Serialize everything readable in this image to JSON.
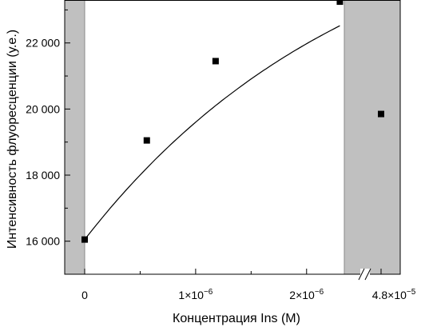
{
  "chart_data": {
    "type": "scatter",
    "ylabel": "Интенсивность флуоресценции (у.е.)",
    "xlabel": "Концентрация Ins (M)",
    "ylim": [
      15000,
      23300
    ],
    "xlim": [
      -1.8e-07,
      2.34e-06
    ],
    "x_axis_break": true,
    "shaded_regions": [
      "left of 0",
      "right of x-axis break"
    ],
    "y_ticks": [
      16000,
      18000,
      20000,
      22000
    ],
    "y_tick_labels": [
      "16 000",
      "18 000",
      "20 000",
      "22 000"
    ],
    "x_ticks": [
      {
        "label": "0",
        "base": "0",
        "exp": ""
      },
      {
        "label": "1×10⁻⁶",
        "base": "1×10",
        "exp": "−6"
      },
      {
        "label": "2×10⁻⁶",
        "base": "2×10",
        "exp": "−6"
      },
      {
        "label": "4.8×10⁻⁵",
        "base": "4.8×10",
        "exp": "−5"
      }
    ],
    "series": [
      {
        "points": [
          {
            "x": 0,
            "y": 16050
          },
          {
            "x": 5.6e-07,
            "y": 19050
          },
          {
            "x": 1.18e-06,
            "y": 21450
          },
          {
            "x": 2.3e-06,
            "y": 23250
          },
          {
            "x": 4.8e-05,
            "y": 19850
          }
        ]
      }
    ],
    "fit_curve": true,
    "colors": {
      "shade": "#c0c0c0",
      "marker": "#000000",
      "curve": "#000000"
    }
  }
}
